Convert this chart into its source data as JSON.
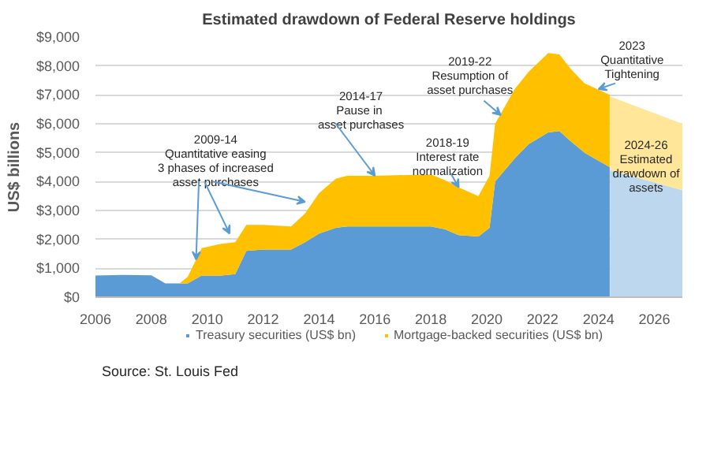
{
  "chart_data": {
    "type": "area",
    "title": "Estimated drawdown of Federal Reserve holdings",
    "ylabel": "US$ billions",
    "stacked": true,
    "xlim": [
      2006,
      2027
    ],
    "xticks": [
      2006,
      2008,
      2010,
      2012,
      2014,
      2016,
      2018,
      2020,
      2022,
      2024,
      2026
    ],
    "ylim": [
      0,
      9000
    ],
    "yticks": [
      {
        "value": 0,
        "label": "$0"
      },
      {
        "value": 1000,
        "label": "$1,000"
      },
      {
        "value": 2000,
        "label": "$2,000"
      },
      {
        "value": 3000,
        "label": "$3,000"
      },
      {
        "value": 4000,
        "label": "$4,000"
      },
      {
        "value": 5000,
        "label": "$5,000"
      },
      {
        "value": 6000,
        "label": "$6,000"
      },
      {
        "value": 7000,
        "label": "$7,000"
      },
      {
        "value": 8000,
        "label": "$8,000"
      },
      {
        "value": 9000,
        "label": "$9,000"
      }
    ],
    "grid": "y",
    "legend": "bottom",
    "x": [
      2006,
      2007,
      2008,
      2008.5,
      2009,
      2009.3,
      2009.8,
      2010.5,
      2011,
      2011.4,
      2012,
      2013,
      2013.5,
      2014,
      2014.6,
      2015,
      2016,
      2018,
      2018.5,
      2019,
      2019.7,
      2020.1,
      2020.3,
      2021,
      2021.5,
      2022.2,
      2022.6,
      2023,
      2023.5,
      2024.4,
      2024.41,
      2027
    ],
    "series": [
      {
        "name": "Treasury securities (US$ bn)",
        "color": "#5b9bd5",
        "values": [
          750,
          770,
          760,
          480,
          480,
          480,
          750,
          750,
          800,
          1600,
          1650,
          1650,
          1900,
          2200,
          2400,
          2450,
          2450,
          2450,
          2350,
          2150,
          2100,
          2400,
          4000,
          4800,
          5300,
          5700,
          5750,
          5400,
          5000,
          4500,
          null,
          null
        ]
      },
      {
        "color": "#bdd7ee",
        "values": [
          null,
          null,
          null,
          null,
          null,
          null,
          null,
          null,
          null,
          null,
          null,
          null,
          null,
          null,
          null,
          null,
          null,
          null,
          null,
          null,
          null,
          null,
          null,
          null,
          null,
          null,
          null,
          null,
          null,
          null,
          4400,
          3700
        ]
      },
      {
        "name": "Mortgage-backed securities (US$ bn)",
        "color": "#ffc000",
        "values": [
          0,
          0,
          0,
          0,
          0,
          220,
          950,
          1100,
          1100,
          900,
          850,
          800,
          1000,
          1400,
          1700,
          1750,
          1750,
          1800,
          1700,
          1650,
          1400,
          1800,
          2000,
          2400,
          2500,
          2750,
          2650,
          2500,
          2400,
          2500,
          null,
          null
        ]
      },
      {
        "color": "#ffe699",
        "values": [
          null,
          null,
          null,
          null,
          null,
          null,
          null,
          null,
          null,
          null,
          null,
          null,
          null,
          null,
          null,
          null,
          null,
          null,
          null,
          null,
          null,
          null,
          null,
          null,
          null,
          null,
          null,
          null,
          null,
          null,
          2550,
          2300
        ]
      }
    ],
    "annotations": [
      {
        "text": "2009-14\nQuantitative easing\n3 phases of increased\nasset purchases",
        "x": 2009.6,
        "y": 1300
      },
      {
        "text": "2014-17\nPause  in\nasset purchases",
        "x": 2016,
        "y": 4200
      },
      {
        "text": "2018-19\nInterest rate\nnormalization",
        "x": 2019.0,
        "y": 3800
      },
      {
        "text": "2019-22\nResumption of\nasset purchases",
        "x": 2020.5,
        "y": 6300
      },
      {
        "text": "2023\nQuantitative\nTightening",
        "x": 2024.0,
        "y": 7200
      },
      "2024-26\nEstimated\ndrawdown of\nassets",
      "Source: St. Louis Fed"
    ]
  }
}
